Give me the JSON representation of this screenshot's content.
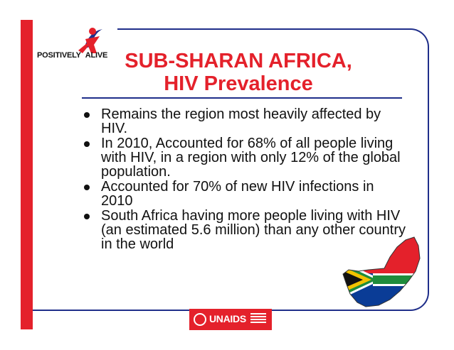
{
  "logo": {
    "text_left": "POSITIVELY",
    "text_right": "ALIVE",
    "icon": "person-figure-icon"
  },
  "title": {
    "line1": "SUB-SHARAN AFRICA,",
    "line2": "HIV Prevalence"
  },
  "bullets": [
    "Remains the region most heavily affected by HIV.",
    "In 2010, Accounted for 68% of all people living with HIV, in a region with only 12% of the global population.",
    "Accounted for 70% of new HIV infections in 2010",
    "South Africa having more people living with HIV (an estimated 5.6 million) than any other country in the world"
  ],
  "map": {
    "icon": "south-africa-flag-map-icon"
  },
  "footer": {
    "org": "UNAIDS",
    "emblem": "un-emblem-icon"
  },
  "colors": {
    "red": "#e4212b",
    "blue": "#1f2e8a",
    "text": "#111111"
  }
}
